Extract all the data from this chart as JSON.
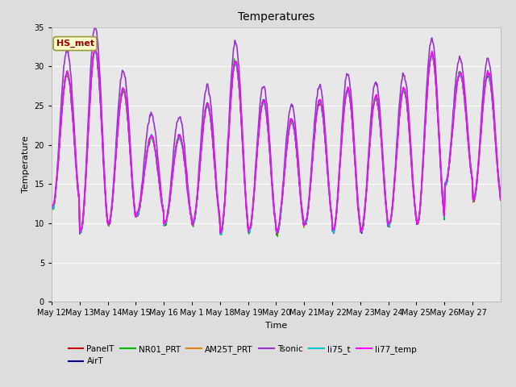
{
  "title": "Temperatures",
  "xlabel": "Time",
  "ylabel": "Temperature",
  "ylim": [
    0,
    35
  ],
  "yticks": [
    0,
    5,
    10,
    15,
    20,
    25,
    30,
    35
  ],
  "x_tick_labels": [
    "May 12",
    "May 13",
    "May 14",
    "May 15",
    "May 16",
    "May 1",
    "May 18",
    "May 19",
    "May 20",
    "May 21",
    "May 22",
    "May 23",
    "May 24",
    "May 25",
    "May 26",
    "May 27"
  ],
  "annotation_text": "HS_met",
  "annotation_color": "#990000",
  "annotation_bg": "#ffffcc",
  "annotation_border": "#999933",
  "series_names": [
    "PanelT",
    "AirT",
    "NR01_PRT",
    "AM25T_PRT",
    "Tsonic",
    "li75_t",
    "li77_temp"
  ],
  "series_colors": [
    "#cc0000",
    "#000099",
    "#00bb00",
    "#dd8800",
    "#9933cc",
    "#00cccc",
    "#ff00ff"
  ],
  "series_lw": [
    1.0,
    1.0,
    1.0,
    1.0,
    1.2,
    1.0,
    1.2
  ],
  "fig_bg": "#dddddd",
  "plot_bg": "#e8e8e8",
  "grid_color": "#cccccc",
  "day_maxes": [
    29,
    32,
    27,
    21,
    21,
    25,
    30.5,
    25.5,
    23,
    25.5,
    27,
    26,
    27,
    31.5,
    29,
    29
  ],
  "day_mines": [
    12,
    9,
    10,
    11,
    10,
    10,
    9,
    9,
    9,
    10,
    9,
    9,
    10,
    10,
    15,
    13
  ],
  "tsonic_extra_max": [
    3,
    3,
    2.5,
    3,
    2.5,
    2.5,
    2.5,
    2,
    2,
    2,
    2,
    2,
    2,
    2,
    2,
    2
  ],
  "n_days": 16,
  "pts_per_day": 48,
  "seed": 7
}
